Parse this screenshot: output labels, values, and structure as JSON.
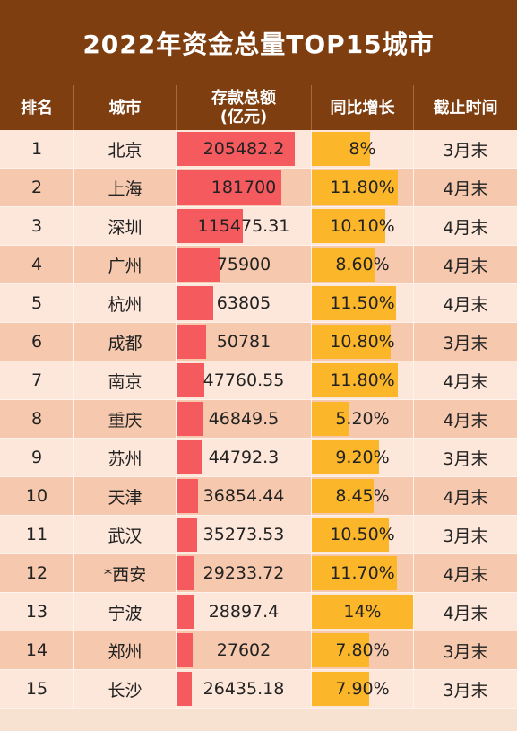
{
  "title": "2022年资金总量TOP15城市",
  "headers": {
    "rank": "排名",
    "city": "城市",
    "deposit_line1": "存款总额",
    "deposit_line2": "(亿元)",
    "growth": "同比增长",
    "cutoff": "截止时间"
  },
  "colors": {
    "header_bg": "#7e3e10",
    "deposit_bar": "#f55a5f",
    "growth_bar": "#fbb62a",
    "row_light": "#fde7da",
    "row_dark": "#f6c9ae"
  },
  "chart_data": {
    "type": "table",
    "title": "2022年资金总量TOP15城市",
    "columns": [
      "排名",
      "城市",
      "存款总额(亿元)",
      "同比增长",
      "截止时间"
    ],
    "rows": [
      {
        "rank": "1",
        "city": "北京",
        "deposit": "205482.2",
        "deposit_value": 205482.2,
        "growth": "8%",
        "growth_value": 8.0,
        "cutoff": "3月末"
      },
      {
        "rank": "2",
        "city": "上海",
        "deposit": "181700",
        "deposit_value": 181700,
        "growth": "11.80%",
        "growth_value": 11.8,
        "cutoff": "4月末"
      },
      {
        "rank": "3",
        "city": "深圳",
        "deposit": "115475.31",
        "deposit_value": 115475.31,
        "growth": "10.10%",
        "growth_value": 10.1,
        "cutoff": "4月末"
      },
      {
        "rank": "4",
        "city": "广州",
        "deposit": "75900",
        "deposit_value": 75900,
        "growth": "8.60%",
        "growth_value": 8.6,
        "cutoff": "4月末"
      },
      {
        "rank": "5",
        "city": "杭州",
        "deposit": "63805",
        "deposit_value": 63805,
        "growth": "11.50%",
        "growth_value": 11.5,
        "cutoff": "4月末"
      },
      {
        "rank": "6",
        "city": "成都",
        "deposit": "50781",
        "deposit_value": 50781,
        "growth": "10.80%",
        "growth_value": 10.8,
        "cutoff": "3月末"
      },
      {
        "rank": "7",
        "city": "南京",
        "deposit": "47760.55",
        "deposit_value": 47760.55,
        "growth": "11.80%",
        "growth_value": 11.8,
        "cutoff": "4月末"
      },
      {
        "rank": "8",
        "city": "重庆",
        "deposit": "46849.5",
        "deposit_value": 46849.5,
        "growth": "5.20%",
        "growth_value": 5.2,
        "cutoff": "4月末"
      },
      {
        "rank": "9",
        "city": "苏州",
        "deposit": "44792.3",
        "deposit_value": 44792.3,
        "growth": "9.20%",
        "growth_value": 9.2,
        "cutoff": "3月末"
      },
      {
        "rank": "10",
        "city": "天津",
        "deposit": "36854.44",
        "deposit_value": 36854.44,
        "growth": "8.45%",
        "growth_value": 8.45,
        "cutoff": "4月末"
      },
      {
        "rank": "11",
        "city": "武汉",
        "deposit": "35273.53",
        "deposit_value": 35273.53,
        "growth": "10.50%",
        "growth_value": 10.5,
        "cutoff": "3月末"
      },
      {
        "rank": "12",
        "city": "*西安",
        "deposit": "29233.72",
        "deposit_value": 29233.72,
        "growth": "11.70%",
        "growth_value": 11.7,
        "cutoff": "4月末"
      },
      {
        "rank": "13",
        "city": "宁波",
        "deposit": "28897.4",
        "deposit_value": 28897.4,
        "growth": "14%",
        "growth_value": 14.0,
        "cutoff": "4月末"
      },
      {
        "rank": "14",
        "city": "郑州",
        "deposit": "27602",
        "deposit_value": 27602,
        "growth": "7.80%",
        "growth_value": 7.8,
        "cutoff": "3月末"
      },
      {
        "rank": "15",
        "city": "长沙",
        "deposit": "26435.18",
        "deposit_value": 26435.18,
        "growth": "7.90%",
        "growth_value": 7.9,
        "cutoff": "3月末"
      }
    ],
    "deposit_bar_max": 205482.2,
    "growth_bar_max": 14.0
  }
}
